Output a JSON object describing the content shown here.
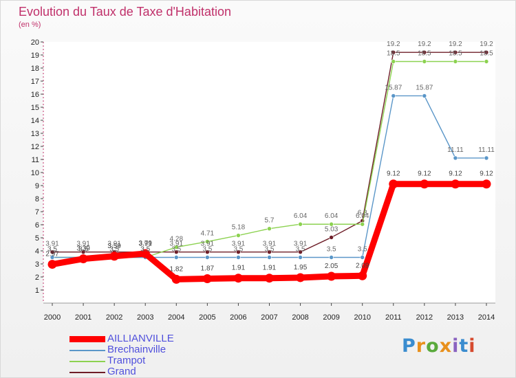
{
  "title": "Evolution du Taux de Taxe d'Habitation",
  "subtitle": "(en %)",
  "logo": {
    "text": "Proxiti",
    "colors": [
      "#3a8ccf",
      "#e8901c",
      "#5aaa3c",
      "#e8901c",
      "#8a63c0",
      "#3a8ccf",
      "#d64a2e"
    ]
  },
  "chart_data": {
    "type": "line",
    "x": [
      2000,
      2001,
      2002,
      2003,
      2004,
      2005,
      2006,
      2007,
      2008,
      2009,
      2010,
      2011,
      2012,
      2013,
      2014
    ],
    "ylim": [
      0,
      20
    ],
    "yticks": [
      1,
      2,
      3,
      4,
      5,
      6,
      7,
      8,
      9,
      10,
      11,
      12,
      13,
      14,
      15,
      16,
      17,
      18,
      19,
      20
    ],
    "grid": false,
    "legend_position": "bottom-left",
    "series": [
      {
        "name": "Grand",
        "color": "#6e1e28",
        "values": [
          3.91,
          3.91,
          3.91,
          3.91,
          3.91,
          3.91,
          3.91,
          3.91,
          3.91,
          5.03,
          6.3,
          19.2,
          19.2,
          19.2,
          19.2
        ],
        "labels": [
          "3.91",
          "3.91",
          "3.91",
          "3.91",
          "3.91",
          "3.91",
          "3.91",
          "3.91",
          "3.91",
          "5.03",
          "6.3",
          "19.2",
          "19.2",
          "19.2",
          "19.2"
        ]
      },
      {
        "name": "Trampot",
        "color": "#8cd250",
        "values": [
          3.5,
          3.5,
          3.5,
          3.5,
          4.28,
          4.71,
          5.18,
          5.7,
          6.04,
          6.04,
          6.04,
          18.5,
          18.5,
          18.5,
          18.5
        ],
        "labels": [
          "3.5",
          "3.5",
          "3.5",
          "3.5",
          "4.28",
          "4.71",
          "5.18",
          "5.7",
          "6.04",
          "6.04",
          "6.04",
          "18.5",
          "18.5",
          "18.5",
          "18.5"
        ]
      },
      {
        "name": "Brechainville",
        "color": "#5a96c8",
        "values": [
          3.5,
          3.5,
          3.5,
          3.5,
          3.5,
          3.5,
          3.5,
          3.5,
          3.5,
          3.5,
          3.5,
          15.87,
          15.87,
          11.11,
          11.11
        ],
        "labels": [
          "3.5",
          "3.5",
          "3.5",
          "3.5",
          "3.5",
          "3.5",
          "3.5",
          "3.5",
          "3.5",
          "3.5",
          "3.5",
          "15.87",
          "15.87",
          "11.11",
          "11.11"
        ]
      },
      {
        "name": "AILLIANVILLE",
        "color": "#ff0000",
        "values": [
          2.97,
          3.39,
          3.59,
          3.79,
          1.82,
          1.87,
          1.91,
          1.91,
          1.95,
          2.05,
          2.09,
          9.12,
          9.12,
          9.12,
          9.12
        ],
        "labels": [
          "2.97",
          "3.39",
          "3.59",
          "3.79",
          "1.82",
          "1.87",
          "1.91",
          "1.91",
          "1.95",
          "2.05",
          "2.09",
          "9.12",
          "9.12",
          "9.12",
          "9.12"
        ]
      }
    ]
  },
  "legend": [
    {
      "name": "AILLIANVILLE",
      "color": "#ff0000",
      "text_color": "#5050dc"
    },
    {
      "name": "Brechainville",
      "color": "#5a96c8",
      "text_color": "#5050dc"
    },
    {
      "name": "Trampot",
      "color": "#8cd250",
      "text_color": "#5050dc"
    },
    {
      "name": "Grand",
      "color": "#6e1e28",
      "text_color": "#5050dc"
    }
  ]
}
